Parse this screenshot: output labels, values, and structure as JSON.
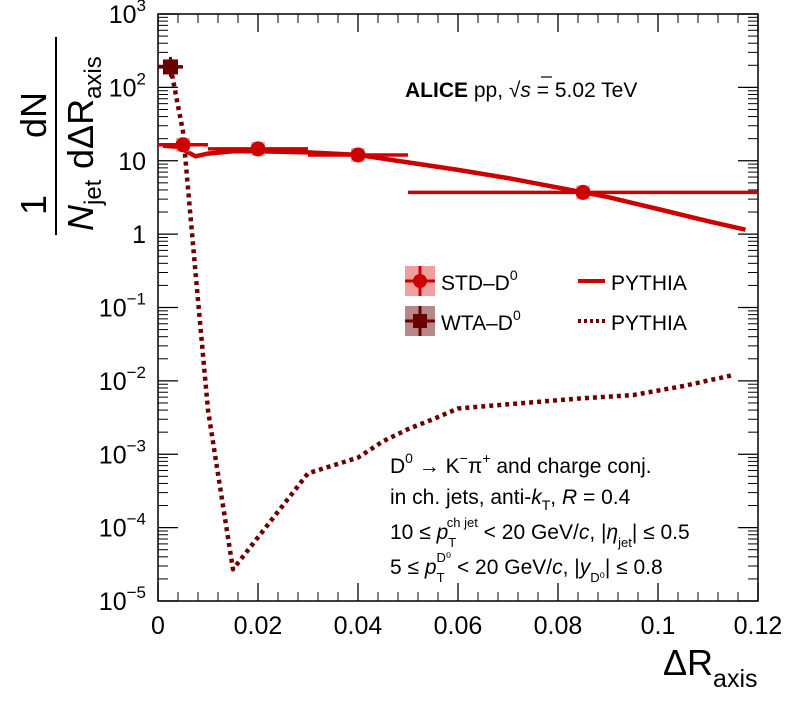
{
  "chart_data": {
    "type": "line",
    "x_scale": "linear",
    "y_scale": "log",
    "xlim": [
      0,
      0.12
    ],
    "ylim": [
      1e-05,
      1000
    ],
    "x_ticks": [
      0,
      0.02,
      0.04,
      0.06,
      0.08,
      0.1,
      0.12
    ],
    "x_tick_labels": [
      "0",
      "0.02",
      "0.04",
      "0.06",
      "0.08",
      "0.1",
      "0.12"
    ],
    "y_ticks": [
      {
        "value": 1000,
        "base": "10",
        "exp": "3"
      },
      {
        "value": 100,
        "base": "10",
        "exp": "2"
      },
      {
        "value": 10,
        "base": "10",
        "exp": ""
      },
      {
        "value": 1,
        "base": "1",
        "exp": ""
      },
      {
        "value": 0.1,
        "base": "10",
        "exp": "−1"
      },
      {
        "value": 0.01,
        "base": "10",
        "exp": "−2"
      },
      {
        "value": 0.001,
        "base": "10",
        "exp": "−3"
      },
      {
        "value": 0.0001,
        "base": "10",
        "exp": "−4"
      },
      {
        "value": 1e-05,
        "base": "10",
        "exp": "−5"
      }
    ],
    "xlabel": {
      "main": "ΔR",
      "sub": "axis"
    },
    "ylabel": {
      "frac1_num": "1",
      "frac1_den_main": "N",
      "frac1_den_sub": "jet",
      "frac2_num": "dN",
      "frac2_den_main": "dΔR",
      "frac2_den_sub": "axis"
    },
    "series": [
      {
        "name": "STD–D⁰",
        "kind": "data",
        "color": "#cc0000",
        "marker": "circle",
        "points": [
          {
            "x": 0.005,
            "y": 16.5,
            "xerr": 0.005
          },
          {
            "x": 0.02,
            "y": 14.5,
            "xerr": 0.01
          },
          {
            "x": 0.04,
            "y": 12.0,
            "xerr": 0.01
          },
          {
            "x": 0.085,
            "y": 3.7,
            "xerr": 0.035
          }
        ]
      },
      {
        "name": "WTA–D⁰",
        "kind": "data",
        "color": "#6b0000",
        "marker": "square",
        "points": [
          {
            "x": 0.0025,
            "y": 190,
            "xerr": 0.0025
          }
        ]
      },
      {
        "name": "PYTHIA",
        "kind": "model",
        "style": "solid",
        "color": "#cc0000",
        "x": [
          0.001,
          0.004,
          0.0075,
          0.01,
          0.015,
          0.02,
          0.03,
          0.04,
          0.05,
          0.06,
          0.07,
          0.08,
          0.09,
          0.1,
          0.11,
          0.1175
        ],
        "y": [
          16,
          15.5,
          11.5,
          12.5,
          13.5,
          13.5,
          13,
          12,
          9.5,
          7.5,
          5.8,
          4.3,
          3.2,
          2.2,
          1.5,
          1.15
        ]
      },
      {
        "name": "PYTHIA",
        "kind": "model",
        "style": "dotted",
        "color": "#6b0000",
        "x": [
          0.0025,
          0.005,
          0.0075,
          0.01,
          0.015,
          0.03,
          0.04,
          0.045,
          0.05,
          0.055,
          0.06,
          0.07,
          0.085,
          0.095,
          0.105,
          0.115
        ],
        "y": [
          190,
          25,
          0.3,
          0.004,
          2.7e-05,
          0.00055,
          0.0009,
          0.0015,
          0.0022,
          0.003,
          0.0042,
          0.0048,
          0.0058,
          0.0064,
          0.0085,
          0.012
        ]
      }
    ],
    "legend": {
      "placement": "center-right",
      "entries": [
        {
          "label_main": "STD–D",
          "label_sup": "0",
          "marker": "circle",
          "color": "#cc0000"
        },
        {
          "label_main": "PYTHIA",
          "line": "solid",
          "color": "#cc0000"
        },
        {
          "label_main": "WTA–D",
          "label_sup": "0",
          "marker": "square",
          "color": "#6b0000"
        },
        {
          "label_main": "PYTHIA",
          "line": "dotted",
          "color": "#6b0000"
        }
      ]
    },
    "annotations": {
      "experiment": "ALICE",
      "system_pre": "pp, √",
      "system_s": "s",
      "system_post": " = 5.02 TeV",
      "decay": {
        "a": "D",
        "a_sup": "0",
        "arrow": " → K",
        "b_sup": "−",
        "c": "π",
        "c_sup": "+",
        "rest": " and charge conj."
      },
      "jets": {
        "pre": "in ch. jets, anti-",
        "k": "k",
        "k_sub": "T",
        "mid": ", ",
        "R": "R",
        "post": " = 0.4"
      },
      "cut1": {
        "pre": "10 ≤ ",
        "p": "p",
        "p_sub": "T",
        "p_sup": "ch jet",
        "mid": " < 20 GeV/",
        "c": "c",
        "after_c": ", |",
        "eta": "η",
        "eta_sub": "jet",
        "post": "| ≤ 0.5"
      },
      "cut2": {
        "pre": "5 ≤ ",
        "p": "p",
        "p_sub": "T",
        "p_sup": "D⁰",
        "mid": " < 20 GeV/",
        "c": "c",
        "after_c": ", |",
        "y": "y",
        "y_sub": "D⁰",
        "post": "| ≤ 0.8"
      }
    }
  }
}
